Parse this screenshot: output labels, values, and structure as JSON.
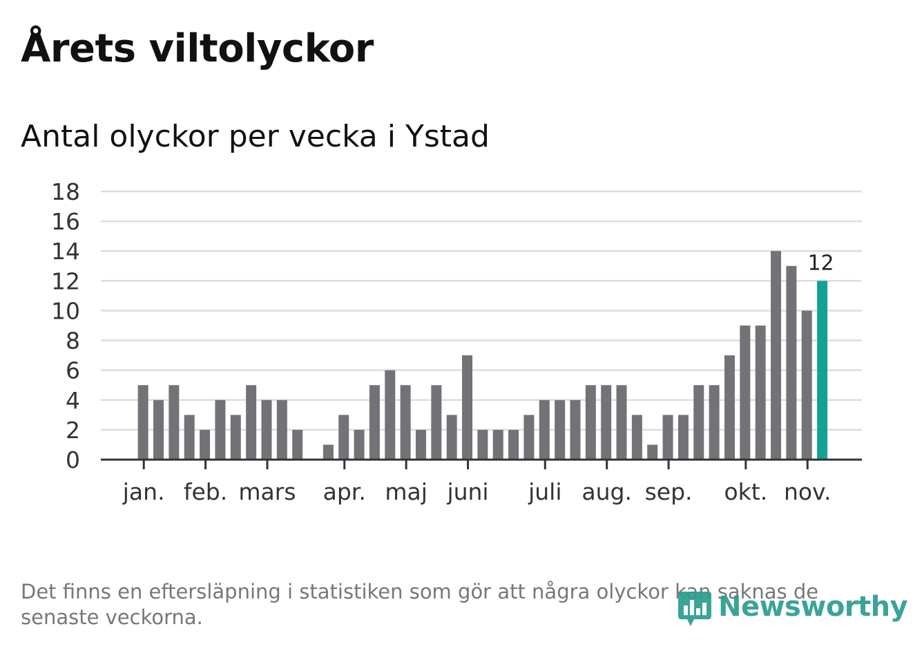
{
  "header": {
    "title": "Årets viltolyckor",
    "subtitle": "Antal olyckor per vecka i Ystad"
  },
  "footer": {
    "note": "Det finns en eftersläpning i statistiken som gör att några olyckor kan saknas de senaste veckorna.",
    "brand": "Newsworthy"
  },
  "colors": {
    "bar": "#737277",
    "highlight": "#14a195",
    "grid": "#dddddd",
    "axis": "#333333",
    "brand": "#2a9d8f"
  },
  "chart_data": {
    "type": "bar",
    "title": "Antal olyckor per vecka i Ystad",
    "xlabel": "",
    "ylabel": "",
    "ylim": [
      0,
      18
    ],
    "yticks": [
      0,
      2,
      4,
      6,
      8,
      10,
      12,
      14,
      16,
      18
    ],
    "grid": true,
    "weeks": 46,
    "values": [
      5,
      4,
      5,
      3,
      2,
      4,
      3,
      5,
      4,
      4,
      2,
      0,
      1,
      3,
      2,
      5,
      6,
      5,
      2,
      5,
      3,
      7,
      2,
      2,
      2,
      3,
      4,
      4,
      4,
      5,
      5,
      5,
      3,
      1,
      3,
      3,
      5,
      5,
      7,
      9,
      9,
      14,
      13,
      10,
      12
    ],
    "months": [
      {
        "label": "jan.",
        "week": 0
      },
      {
        "label": "feb.",
        "week": 4
      },
      {
        "label": "mars",
        "week": 8
      },
      {
        "label": "apr.",
        "week": 13
      },
      {
        "label": "maj",
        "week": 17
      },
      {
        "label": "juni",
        "week": 21
      },
      {
        "label": "juli",
        "week": 26
      },
      {
        "label": "aug.",
        "week": 30
      },
      {
        "label": "sep.",
        "week": 34
      },
      {
        "label": "okt.",
        "week": 39
      },
      {
        "label": "nov.",
        "week": 43
      }
    ],
    "highlight_index": 44,
    "highlight_label": "12"
  }
}
